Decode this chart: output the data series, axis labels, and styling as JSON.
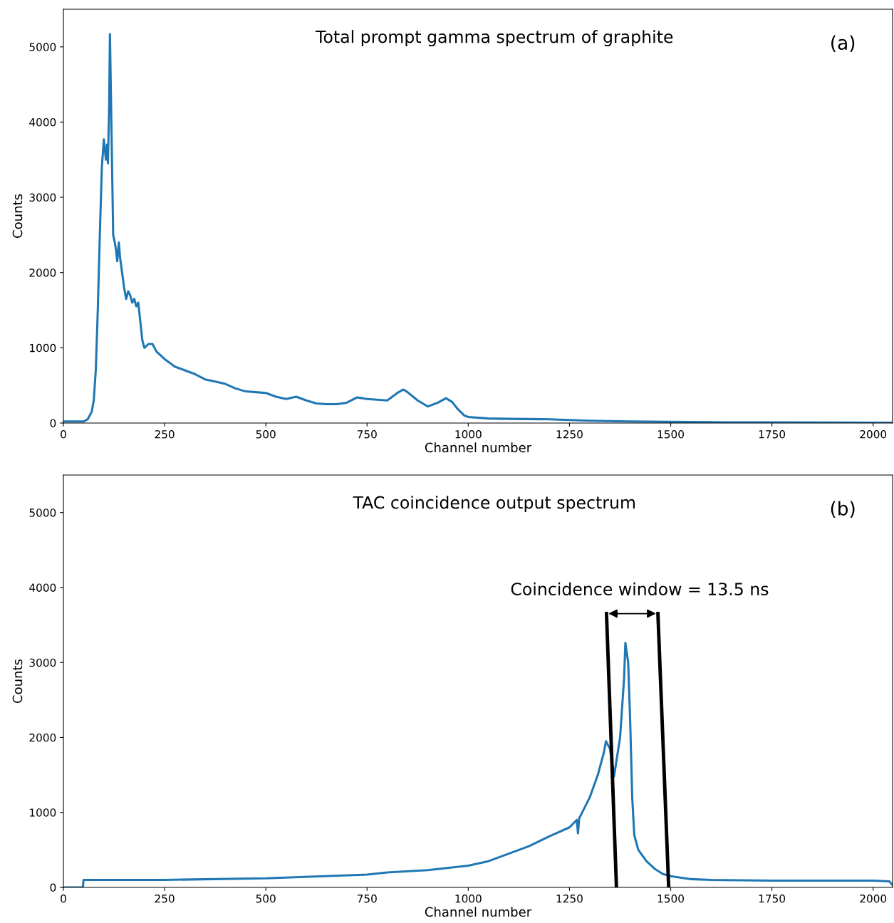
{
  "chart_data": [
    {
      "type": "line",
      "xlabel": "Channel number",
      "ylabel": "Counts",
      "xlim": [
        0,
        2048
      ],
      "ylim": [
        0,
        5500
      ],
      "xticks": [
        0,
        250,
        500,
        750,
        1000,
        1250,
        1500,
        1750,
        2000
      ],
      "yticks": [
        0,
        1000,
        2000,
        3000,
        4000,
        5000
      ],
      "grid": false,
      "legend": false,
      "marker": "none",
      "line_style": "solid",
      "annotations": [
        "Total prompt gamma spectrum of graphite",
        "(a)"
      ],
      "series": [
        {
          "color": "#1f77b4",
          "x": [
            0,
            50,
            60,
            70,
            75,
            80,
            85,
            90,
            95,
            100,
            105,
            108,
            110,
            113,
            115,
            117,
            120,
            123,
            127,
            130,
            133,
            137,
            140,
            145,
            150,
            155,
            160,
            165,
            170,
            175,
            180,
            185,
            190,
            195,
            200,
            210,
            220,
            230,
            250,
            275,
            300,
            325,
            350,
            375,
            400,
            425,
            450,
            475,
            500,
            525,
            550,
            575,
            600,
            625,
            650,
            675,
            700,
            725,
            750,
            775,
            800,
            825,
            840,
            850,
            875,
            900,
            925,
            945,
            960,
            975,
            990,
            1000,
            1050,
            1100,
            1200,
            1250,
            1300,
            1400,
            1500,
            1600,
            1750,
            2048
          ],
          "values": [
            20,
            20,
            50,
            150,
            300,
            700,
            1500,
            2500,
            3400,
            3770,
            3500,
            3700,
            3450,
            4200,
            5170,
            4500,
            3500,
            2500,
            2400,
            2300,
            2150,
            2400,
            2200,
            2000,
            1800,
            1650,
            1750,
            1700,
            1600,
            1650,
            1550,
            1600,
            1350,
            1100,
            1000,
            1050,
            1050,
            950,
            850,
            750,
            700,
            650,
            580,
            550,
            520,
            460,
            420,
            410,
            400,
            350,
            320,
            350,
            300,
            260,
            250,
            250,
            270,
            340,
            320,
            310,
            300,
            400,
            445,
            410,
            300,
            220,
            270,
            330,
            280,
            180,
            100,
            80,
            60,
            55,
            50,
            40,
            30,
            20,
            15,
            10,
            8,
            5
          ]
        }
      ]
    },
    {
      "type": "line",
      "xlabel": "Channel number",
      "ylabel": "Counts",
      "xlim": [
        0,
        2048
      ],
      "ylim": [
        0,
        5500
      ],
      "xticks": [
        0,
        250,
        500,
        750,
        1000,
        1250,
        1500,
        1750,
        2000
      ],
      "yticks": [
        0,
        1000,
        2000,
        3000,
        4000,
        5000
      ],
      "grid": false,
      "legend": false,
      "marker": "none",
      "line_style": "solid",
      "annotations": [
        "TAC coincidence output spectrum",
        "(b)",
        "Coincidence window = 13.5 ns"
      ],
      "series": [
        {
          "color": "#1f77b4",
          "x": [
            0,
            48,
            50,
            100,
            250,
            500,
            750,
            800,
            900,
            1000,
            1050,
            1100,
            1150,
            1200,
            1250,
            1268,
            1271,
            1274,
            1300,
            1320,
            1335,
            1340,
            1350,
            1360,
            1375,
            1385,
            1388,
            1395,
            1400,
            1405,
            1410,
            1420,
            1440,
            1460,
            1480,
            1500,
            1550,
            1600,
            1750,
            2000,
            2040,
            2048
          ],
          "values": [
            0,
            0,
            100,
            100,
            100,
            120,
            170,
            200,
            230,
            290,
            350,
            450,
            550,
            680,
            800,
            900,
            720,
            920,
            1200,
            1500,
            1800,
            1950,
            1850,
            1480,
            2000,
            2800,
            3260,
            3000,
            2200,
            1200,
            700,
            500,
            350,
            250,
            180,
            150,
            110,
            100,
            90,
            90,
            80,
            30
          ]
        }
      ]
    }
  ]
}
